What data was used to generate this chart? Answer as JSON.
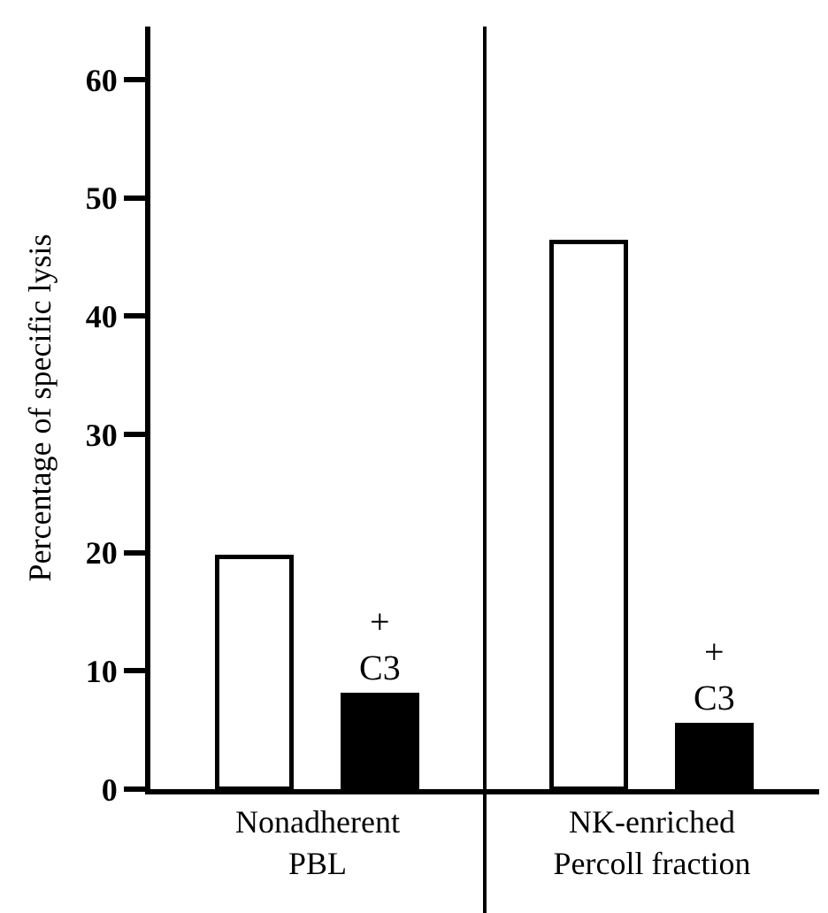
{
  "chart_data": {
    "type": "bar",
    "ylabel": "Percentage of specific lysis",
    "categories": [
      "Nonadherent\nPBL",
      "NK-enriched\nPercoll fraction"
    ],
    "series": [
      {
        "color": "#ffffff",
        "values": [
          19.6,
          46.2
        ]
      },
      {
        "color": "#000000",
        "values": [
          7.9,
          5.4
        ]
      }
    ],
    "annotations": [
      "+\nC3",
      "+\nC3"
    ],
    "ylim": [
      0,
      64.5
    ],
    "yticks": [
      0,
      10,
      20,
      30,
      40,
      50,
      60
    ]
  }
}
